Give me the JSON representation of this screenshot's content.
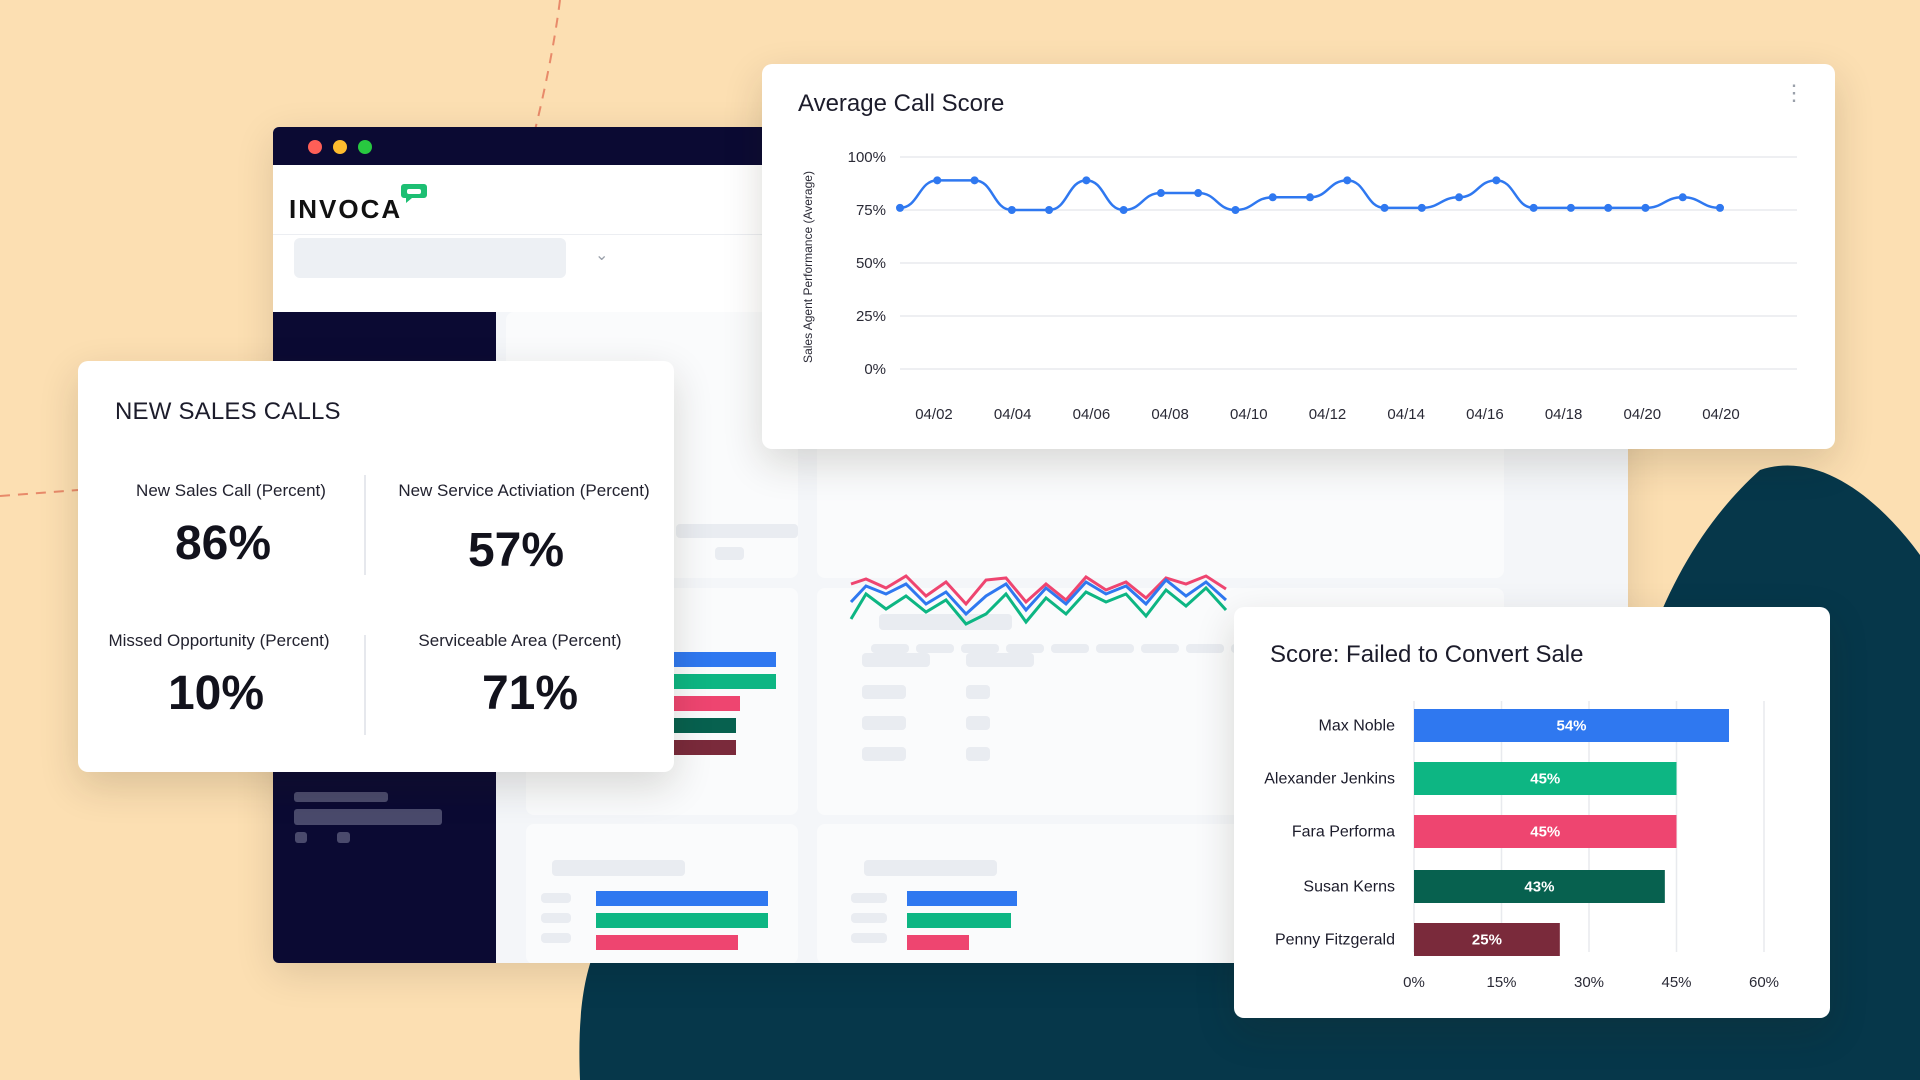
{
  "colors": {
    "background": "#fcdfb2",
    "teal_shape": "#06374a",
    "navy": "#0b0a33",
    "blue": "#2f78f0",
    "green": "#0db683",
    "pink": "#ee4570",
    "dark_green": "#07614f",
    "maroon": "#7a2a3b",
    "accent_logo": "#1dbf73"
  },
  "browser": {
    "logo": "INVOCA",
    "logo_icon": "speech-bubble-icon",
    "traffic_lights": [
      "#fe5f57",
      "#febc2e",
      "#28c840"
    ]
  },
  "sales_card": {
    "title": "NEW SALES CALLS",
    "stats": [
      {
        "label": "New Sales Call (Percent)",
        "value": "86%"
      },
      {
        "label": "New Service Activiation (Percent)",
        "value": "57%"
      },
      {
        "label": "Missed Opportunity (Percent)",
        "value": "10%"
      },
      {
        "label": "Serviceable Area (Percent)",
        "value": "71%"
      }
    ]
  },
  "line_card": {
    "title": "Average Call Score",
    "menu_icon": "kebab-menu-icon"
  },
  "bar_card": {
    "title": "Score: Failed to Convert Sale"
  },
  "chart_data": [
    {
      "type": "line",
      "title": "Average Call Score",
      "ylabel": "Sales Agent Performance (Average)",
      "xlabel": "",
      "ylim": [
        0,
        100
      ],
      "y_ticks": [
        "0%",
        "25%",
        "50%",
        "75%",
        "100%"
      ],
      "x_tick_labels": [
        "04/02",
        "04/04",
        "04/06",
        "04/08",
        "04/10",
        "04/12",
        "04/14",
        "04/16",
        "04/18",
        "04/20",
        "04/20"
      ],
      "grid": true,
      "series": [
        {
          "color": "#2f78f0",
          "values": [
            76,
            89,
            89,
            75,
            75,
            89,
            75,
            83,
            83,
            75,
            81,
            81,
            89,
            76,
            76,
            81,
            89,
            76,
            76,
            76,
            76,
            81,
            76
          ]
        }
      ]
    },
    {
      "type": "bar",
      "orientation": "horizontal",
      "title": "Score: Failed to Convert Sale",
      "categories": [
        "Max Noble",
        "Alexander Jenkins",
        "Fara Performa",
        "Susan Kerns",
        "Penny Fitzgerald"
      ],
      "values": [
        54,
        45,
        45,
        43,
        25
      ],
      "value_labels": [
        "54%",
        "45%",
        "45%",
        "43%",
        "25%"
      ],
      "colors": [
        "#2f78f0",
        "#0db683",
        "#ee4570",
        "#07614f",
        "#7a2a3b"
      ],
      "xlim": [
        0,
        60
      ],
      "x_ticks": [
        "0%",
        "15%",
        "30%",
        "45%",
        "60%"
      ],
      "grid": true
    }
  ]
}
